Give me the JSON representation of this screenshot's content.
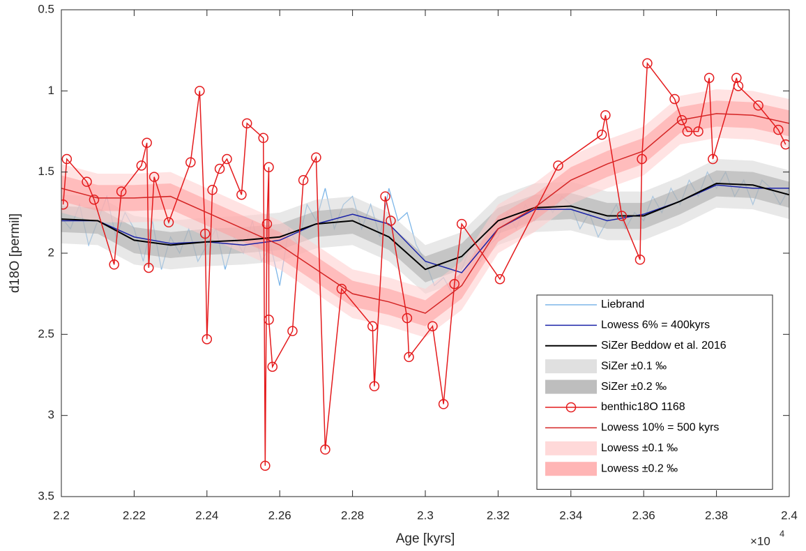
{
  "chart_data": {
    "type": "line",
    "xlabel": "Age [kyrs]",
    "ylabel": "d18O [permil]",
    "x_multiplier": "×10",
    "x_multiplier_power": "4",
    "xlim": [
      2.2,
      2.4
    ],
    "ylim": [
      0.5,
      3.5
    ],
    "y_reversed": true,
    "xticks": [
      2.2,
      2.22,
      2.24,
      2.26,
      2.28,
      2.3,
      2.32,
      2.34,
      2.36,
      2.38,
      2.4
    ],
    "yticks": [
      0.5,
      1,
      1.5,
      2,
      2.5,
      3,
      3.5
    ],
    "legend": "lower right",
    "series": [
      {
        "name": "Liebrand",
        "color": "#7db6e8",
        "x": [
          2.2,
          2.2025,
          2.205,
          2.2075,
          2.21,
          2.2125,
          2.215,
          2.2175,
          2.22,
          2.2225,
          2.225,
          2.2275,
          2.23,
          2.2325,
          2.235,
          2.2375,
          2.24,
          2.2425,
          2.245,
          2.2475,
          2.25,
          2.2525,
          2.255,
          2.2575,
          2.26,
          2.2625,
          2.265,
          2.2675,
          2.27,
          2.2725,
          2.275,
          2.2775,
          2.28,
          2.2825,
          2.285,
          2.2875,
          2.29,
          2.2925,
          2.295,
          2.2975,
          2.3,
          2.3025,
          2.305,
          2.3075,
          2.31,
          2.3125,
          2.315,
          2.3175,
          2.32,
          2.3225,
          2.325,
          2.3275,
          2.33,
          2.3325,
          2.335,
          2.3375,
          2.34,
          2.3425,
          2.345,
          2.3475,
          2.35,
          2.3525,
          2.355,
          2.3575,
          2.36,
          2.3625,
          2.365,
          2.3675,
          2.37,
          2.3725,
          2.375,
          2.3775,
          2.38,
          2.3825,
          2.385,
          2.3875,
          2.39,
          2.3925,
          2.395,
          2.3975,
          2.4
        ],
        "values": [
          1.78,
          1.85,
          1.7,
          1.95,
          1.8,
          1.65,
          1.9,
          1.75,
          1.85,
          2.05,
          1.8,
          2.1,
          1.9,
          2.0,
          1.85,
          2.05,
          1.95,
          1.85,
          2.1,
          1.9,
          2.0,
          1.8,
          2.05,
          1.95,
          2.2,
          1.85,
          1.95,
          1.7,
          1.8,
          1.6,
          1.85,
          1.7,
          1.65,
          1.85,
          1.7,
          1.9,
          1.6,
          1.8,
          1.75,
          1.95,
          2.05,
          2.2,
          2.15,
          2.25,
          2.1,
          1.95,
          2.05,
          1.95,
          1.9,
          1.75,
          1.85,
          1.7,
          1.8,
          1.65,
          1.75,
          1.65,
          1.7,
          1.85,
          1.75,
          1.9,
          1.8,
          1.7,
          1.85,
          1.75,
          1.8,
          1.65,
          1.75,
          1.6,
          1.7,
          1.55,
          1.65,
          1.5,
          1.6,
          1.5,
          1.65,
          1.55,
          1.7,
          1.55,
          1.6,
          1.7,
          1.6
        ]
      },
      {
        "name": "Lowess 6% = 400kyrs",
        "color": "#1a22a8",
        "x": [
          2.2,
          2.21,
          2.22,
          2.23,
          2.24,
          2.25,
          2.26,
          2.27,
          2.28,
          2.29,
          2.3,
          2.31,
          2.32,
          2.33,
          2.34,
          2.35,
          2.36,
          2.37,
          2.38,
          2.39,
          2.4
        ],
        "values": [
          1.8,
          1.8,
          1.9,
          1.94,
          1.93,
          1.95,
          1.92,
          1.82,
          1.76,
          1.82,
          2.05,
          2.12,
          1.85,
          1.73,
          1.73,
          1.8,
          1.76,
          1.68,
          1.58,
          1.6,
          1.6
        ]
      },
      {
        "name": "SiZer Beddow et al. 2016",
        "color": "#000000",
        "x": [
          2.2,
          2.21,
          2.22,
          2.23,
          2.24,
          2.25,
          2.26,
          2.27,
          2.28,
          2.29,
          2.3,
          2.31,
          2.32,
          2.33,
          2.34,
          2.35,
          2.36,
          2.37,
          2.38,
          2.39,
          2.4
        ],
        "values": [
          1.79,
          1.8,
          1.92,
          1.95,
          1.93,
          1.92,
          1.9,
          1.82,
          1.8,
          1.9,
          2.1,
          2.02,
          1.8,
          1.72,
          1.71,
          1.77,
          1.77,
          1.68,
          1.57,
          1.58,
          1.64
        ]
      },
      {
        "name": "SiZer ±0.1 ‰",
        "color": "#d6d6d6",
        "halfwidth": 0.15
      },
      {
        "name": "SiZer ±0.2 ‰",
        "color": "#a8a8a8",
        "halfwidth": 0.08
      },
      {
        "name": "benthic18O 1168",
        "color": "#e41a1c",
        "marker": "o",
        "x": [
          2.2005,
          2.2015,
          2.207,
          2.209,
          2.2145,
          2.2165,
          2.222,
          2.2235,
          2.224,
          2.2255,
          2.2295,
          2.2355,
          2.238,
          2.2395,
          2.24,
          2.2415,
          2.2435,
          2.2455,
          2.2495,
          2.251,
          2.2555,
          2.256,
          2.2565,
          2.257,
          2.257,
          2.258,
          2.2635,
          2.2665,
          2.27,
          2.2725,
          2.277,
          2.2855,
          2.286,
          2.289,
          2.2905,
          2.295,
          2.2955,
          2.302,
          2.305,
          2.308,
          2.31,
          2.3205,
          2.3365,
          2.3485,
          2.3495,
          2.354,
          2.359,
          2.3595,
          2.361,
          2.3685,
          2.3705,
          2.372,
          2.375,
          2.378,
          2.379,
          2.3855,
          2.386,
          2.3915,
          2.397,
          2.399
        ],
        "values": [
          1.7,
          1.42,
          1.56,
          1.67,
          2.07,
          1.62,
          1.46,
          1.32,
          2.09,
          1.53,
          1.81,
          1.44,
          1.0,
          1.88,
          2.53,
          1.61,
          1.48,
          1.42,
          1.64,
          1.2,
          1.29,
          3.31,
          1.82,
          1.47,
          2.41,
          2.7,
          2.48,
          1.55,
          1.41,
          3.21,
          2.22,
          2.45,
          2.82,
          1.65,
          1.8,
          2.4,
          2.64,
          2.45,
          2.93,
          2.19,
          1.82,
          2.16,
          1.46,
          1.27,
          1.15,
          1.77,
          2.04,
          1.42,
          0.83,
          1.05,
          1.18,
          1.25,
          1.25,
          0.92,
          1.42,
          0.92,
          0.97,
          1.09,
          1.24,
          1.33
        ]
      },
      {
        "name": "Lowess 10% = 500 kyrs",
        "color": "#d42424",
        "x": [
          2.2,
          2.21,
          2.22,
          2.23,
          2.24,
          2.25,
          2.26,
          2.27,
          2.28,
          2.29,
          2.3,
          2.31,
          2.32,
          2.33,
          2.34,
          2.35,
          2.36,
          2.37,
          2.38,
          2.39,
          2.4
        ],
        "values": [
          1.6,
          1.66,
          1.66,
          1.65,
          1.75,
          1.85,
          1.95,
          2.1,
          2.25,
          2.3,
          2.37,
          2.2,
          1.85,
          1.72,
          1.55,
          1.45,
          1.37,
          1.18,
          1.14,
          1.15,
          1.2
        ]
      },
      {
        "name": "Lowess ±0.1 ‰",
        "color": "#ffcccc",
        "halfwidth": 0.15
      },
      {
        "name": "Lowess ±0.2 ‰",
        "color": "#ff9c9c",
        "halfwidth": 0.08
      }
    ]
  }
}
